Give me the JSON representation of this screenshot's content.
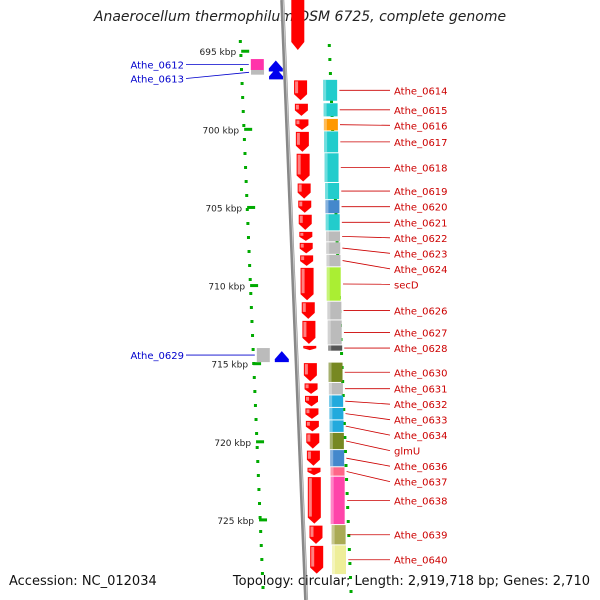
{
  "title": "Anaerocellum thermophilum DSM 6725, complete genome",
  "footer": {
    "accession": "Accession: NC_012034",
    "topology": "Topology: circular; Length: 2,919,718 bp; Genes: 2,710"
  },
  "scale": {
    "kbp_start": 693,
    "kbp_end": 730,
    "ticks": [
      "695 kbp",
      "700 kbp",
      "705 kbp",
      "710 kbp",
      "715 kbp",
      "720 kbp",
      "725 kbp"
    ],
    "tick_values": [
      695,
      700,
      705,
      710,
      715,
      720,
      725
    ]
  },
  "genes_reverse": [
    {
      "label": "Athe_0612",
      "start": 695.5,
      "end": 696.2,
      "color": "#ff33aa"
    },
    {
      "label": "Athe_0613",
      "start": 696.2,
      "end": 696.5,
      "color": "#bbbbbb"
    },
    {
      "label": "Athe_0629",
      "start": 714.0,
      "end": 714.9,
      "color": "#bbbbbb"
    }
  ],
  "genes_forward": [
    {
      "label": "Athe_0614",
      "start": 696.8,
      "end": 698.2,
      "color": "#22cccc"
    },
    {
      "label": "Athe_0615",
      "start": 698.3,
      "end": 699.2,
      "color": "#22cccc"
    },
    {
      "label": "Athe_0616",
      "start": 699.3,
      "end": 700.1,
      "color": "#ff9900"
    },
    {
      "label": "Athe_0617",
      "start": 700.1,
      "end": 701.5,
      "color": "#22cccc"
    },
    {
      "label": "Athe_0618",
      "start": 701.5,
      "end": 703.4,
      "color": "#22cccc"
    },
    {
      "label": "Athe_0619",
      "start": 703.4,
      "end": 704.5,
      "color": "#22cccc"
    },
    {
      "label": "Athe_0620",
      "start": 704.5,
      "end": 705.4,
      "color": "#4488cc"
    },
    {
      "label": "Athe_0621",
      "start": 705.4,
      "end": 706.5,
      "color": "#22cccc"
    },
    {
      "label": "Athe_0622",
      "start": 706.5,
      "end": 707.2,
      "color": "#bbbbbb"
    },
    {
      "label": "Athe_0623",
      "start": 707.2,
      "end": 708.0,
      "color": "#bbbbbb"
    },
    {
      "label": "Athe_0624",
      "start": 708.0,
      "end": 708.8,
      "color": "#bbbbbb"
    },
    {
      "label": "secD",
      "start": 708.8,
      "end": 711.0,
      "color": "#aaee33"
    },
    {
      "label": "Athe_0626",
      "start": 711.0,
      "end": 712.2,
      "color": "#bbbbbb"
    },
    {
      "label": "Athe_0627",
      "start": 712.2,
      "end": 713.8,
      "color": "#bbbbbb"
    },
    {
      "label": "Athe_0628",
      "start": 713.8,
      "end": 714.2,
      "color": "#555555"
    },
    {
      "label": "Athe_0630",
      "start": 714.9,
      "end": 716.2,
      "color": "#778822"
    },
    {
      "label": "Athe_0631",
      "start": 716.2,
      "end": 717.0,
      "color": "#bbbbbb"
    },
    {
      "label": "Athe_0632",
      "start": 717.0,
      "end": 717.8,
      "color": "#22aadd"
    },
    {
      "label": "Athe_0633",
      "start": 717.8,
      "end": 718.6,
      "color": "#22aadd"
    },
    {
      "label": "Athe_0634",
      "start": 718.6,
      "end": 719.4,
      "color": "#22aadd"
    },
    {
      "label": "glmU",
      "start": 719.4,
      "end": 720.5,
      "color": "#778822"
    },
    {
      "label": "Athe_0636",
      "start": 720.5,
      "end": 721.6,
      "color": "#4488cc"
    },
    {
      "label": "Athe_0637",
      "start": 721.6,
      "end": 722.2,
      "color": "#ff6688"
    },
    {
      "label": "Athe_0638",
      "start": 722.2,
      "end": 725.3,
      "color": "#ff44aa"
    },
    {
      "label": "Athe_0639",
      "start": 725.3,
      "end": 726.6,
      "color": "#aaaa55"
    },
    {
      "label": "Athe_0640",
      "start": 726.6,
      "end": 728.5,
      "color": "#eeee99"
    }
  ],
  "colors": {
    "forward_label": "#cc0000",
    "reverse_label": "#0000cc",
    "cds_arrow": "#ff0000",
    "reverse_arrow": "#0000ee",
    "scale_tick": "#00aa00",
    "backbone": "#888888"
  }
}
